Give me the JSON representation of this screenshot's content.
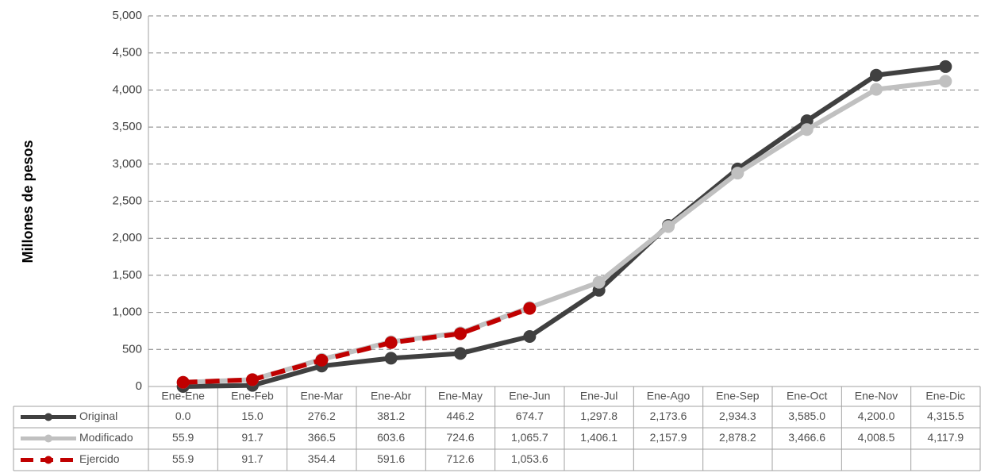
{
  "chart_data": {
    "type": "line",
    "y_label": "Millones de pesos",
    "categories": [
      "Ene-Ene",
      "Ene-Feb",
      "Ene-Mar",
      "Ene-Abr",
      "Ene-May",
      "Ene-Jun",
      "Ene-Jul",
      "Ene-Ago",
      "Ene-Sep",
      "Ene-Oct",
      "Ene-Nov",
      "Ene-Dic"
    ],
    "series": [
      {
        "name": "Original",
        "color": "#404040",
        "line_style": "solid",
        "values": [
          0.0,
          15.0,
          276.2,
          381.2,
          446.2,
          674.7,
          1297.8,
          2173.6,
          2934.3,
          3585.0,
          4200.0,
          4315.5
        ],
        "value_labels": [
          "0.0",
          "15.0",
          "276.2",
          "381.2",
          "446.2",
          "674.7",
          "1,297.8",
          "2,173.6",
          "2,934.3",
          "3,585.0",
          "4,200.0",
          "4,315.5"
        ]
      },
      {
        "name": "Modificado",
        "color": "#c0c0c0",
        "line_style": "solid",
        "values": [
          55.9,
          91.7,
          366.5,
          603.6,
          724.6,
          1065.7,
          1406.1,
          2157.9,
          2878.2,
          3466.6,
          4008.5,
          4117.9
        ],
        "value_labels": [
          "55.9",
          "91.7",
          "366.5",
          "603.6",
          "724.6",
          "1,065.7",
          "1,406.1",
          "2,157.9",
          "2,878.2",
          "3,466.6",
          "4,008.5",
          "4,117.9"
        ]
      },
      {
        "name": "Ejercido",
        "color": "#c00000",
        "line_style": "dashed",
        "values": [
          55.9,
          91.7,
          354.4,
          591.6,
          712.6,
          1053.6,
          null,
          null,
          null,
          null,
          null,
          null
        ],
        "value_labels": [
          "55.9",
          "91.7",
          "354.4",
          "591.6",
          "712.6",
          "1,053.6",
          null,
          null,
          null,
          null,
          null,
          null
        ]
      }
    ],
    "ylim": [
      0,
      5000
    ],
    "yticks": [
      0,
      500,
      {
        "value": 1000,
        "label": "1,000"
      },
      {
        "value": 1500,
        "label": "1,500"
      },
      {
        "value": 2000,
        "label": "2,000"
      },
      {
        "value": 2500,
        "label": "2,500"
      },
      {
        "value": 3000,
        "label": "3,000"
      },
      {
        "value": 3500,
        "label": "3,500"
      },
      {
        "value": 4000,
        "label": "4,000"
      },
      {
        "value": 4500,
        "label": "4,500"
      },
      {
        "value": 5000,
        "label": "5,000"
      }
    ],
    "grid": true
  }
}
